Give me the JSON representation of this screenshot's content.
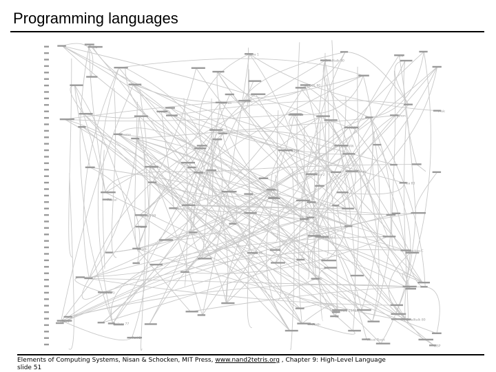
{
  "slide": {
    "title": "Programming languages",
    "footer": {
      "credit_prefix": "Elements of Computing Systems, Nisan & Schocken, MIT Press, ",
      "link": "www.nand2tetris.org",
      "credit_suffix": " , Chapter 9: High-Level Language",
      "slide_number": "slide 51"
    }
  },
  "diagram": {
    "line_color": "#c8c8c8",
    "text_color": "#9a9a9a",
    "year_count": 47,
    "labels": [
      {
        "text": "Simula 67"
      },
      {
        "text": "Smalltalk 80"
      },
      {
        "text": "Pascal"
      },
      {
        "text": "Smalltalk 80"
      },
      {
        "text": "Scheme"
      },
      {
        "text": "Simula 2370"
      },
      {
        "text": "Oberon"
      },
      {
        "text": "Forth"
      },
      {
        "text": "Java 2 (v1.2)"
      },
      {
        "text": "Ada 83"
      },
      {
        "text": "Ada 95"
      },
      {
        "text": "C++ 1998"
      },
      {
        "text": "C (K&R)"
      },
      {
        "text": "Prolog"
      },
      {
        "text": "Fortran 77"
      },
      {
        "text": "ANSI C"
      },
      {
        "text": "Eiffel"
      },
      {
        "text": "Python"
      },
      {
        "text": "Ruby"
      },
      {
        "text": "Perl 5"
      },
      {
        "text": "Haskell 98"
      },
      {
        "text": "Java 1"
      },
      {
        "text": "C#"
      },
      {
        "text": "JavaScript"
      },
      {
        "text": "COBOL"
      },
      {
        "text": "FORTRAN"
      },
      {
        "text": "LISP"
      },
      {
        "text": "ALGOL 60"
      },
      {
        "text": "BASIC"
      },
      {
        "text": "PL/I"
      },
      {
        "text": "APL"
      },
      {
        "text": "Modula-2"
      },
      {
        "text": "Objective-C"
      },
      {
        "text": "Tcl"
      },
      {
        "text": "ML"
      },
      {
        "text": "Delphi"
      },
      {
        "text": "PHP"
      },
      {
        "text": "Visual Basic"
      },
      {
        "text": "Lua"
      },
      {
        "text": "Rexx"
      }
    ]
  }
}
